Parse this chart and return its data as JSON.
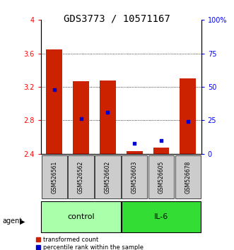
{
  "title": "GDS3773 / 10571167",
  "samples": [
    "GSM526561",
    "GSM526562",
    "GSM526602",
    "GSM526603",
    "GSM526605",
    "GSM526678"
  ],
  "red_values": [
    3.65,
    3.27,
    3.28,
    2.43,
    2.47,
    3.3
  ],
  "blue_percentiles": [
    48,
    26,
    31,
    8,
    10,
    24
  ],
  "y_min": 2.4,
  "y_max": 4.0,
  "y_ticks": [
    2.4,
    2.8,
    3.2,
    3.6,
    4.0
  ],
  "y_tick_labels": [
    "2.4",
    "2.8",
    "3.2",
    "3.6",
    "4"
  ],
  "right_ticks": [
    0,
    25,
    50,
    75,
    100
  ],
  "right_tick_labels": [
    "0",
    "25",
    "50",
    "75",
    "100%"
  ],
  "groups": [
    {
      "label": "control",
      "indices": [
        0,
        1,
        2
      ],
      "color": "#AAFFAA"
    },
    {
      "label": "IL-6",
      "indices": [
        3,
        4,
        5
      ],
      "color": "#33DD33"
    }
  ],
  "bar_color": "#CC2200",
  "blue_color": "#0000CC",
  "bar_bottom": 2.4,
  "bar_width": 0.6,
  "left_axis_color": "red",
  "right_axis_color": "blue",
  "title_fontsize": 10,
  "tick_fontsize": 7,
  "sample_fontsize": 5.5,
  "group_fontsize": 8,
  "legend_fontsize": 6,
  "agent_label": "agent",
  "legend_red": "transformed count",
  "legend_blue": "percentile rank within the sample",
  "grid_lines": [
    2.8,
    3.2,
    3.6
  ],
  "sample_box_color": "#CCCCCC"
}
